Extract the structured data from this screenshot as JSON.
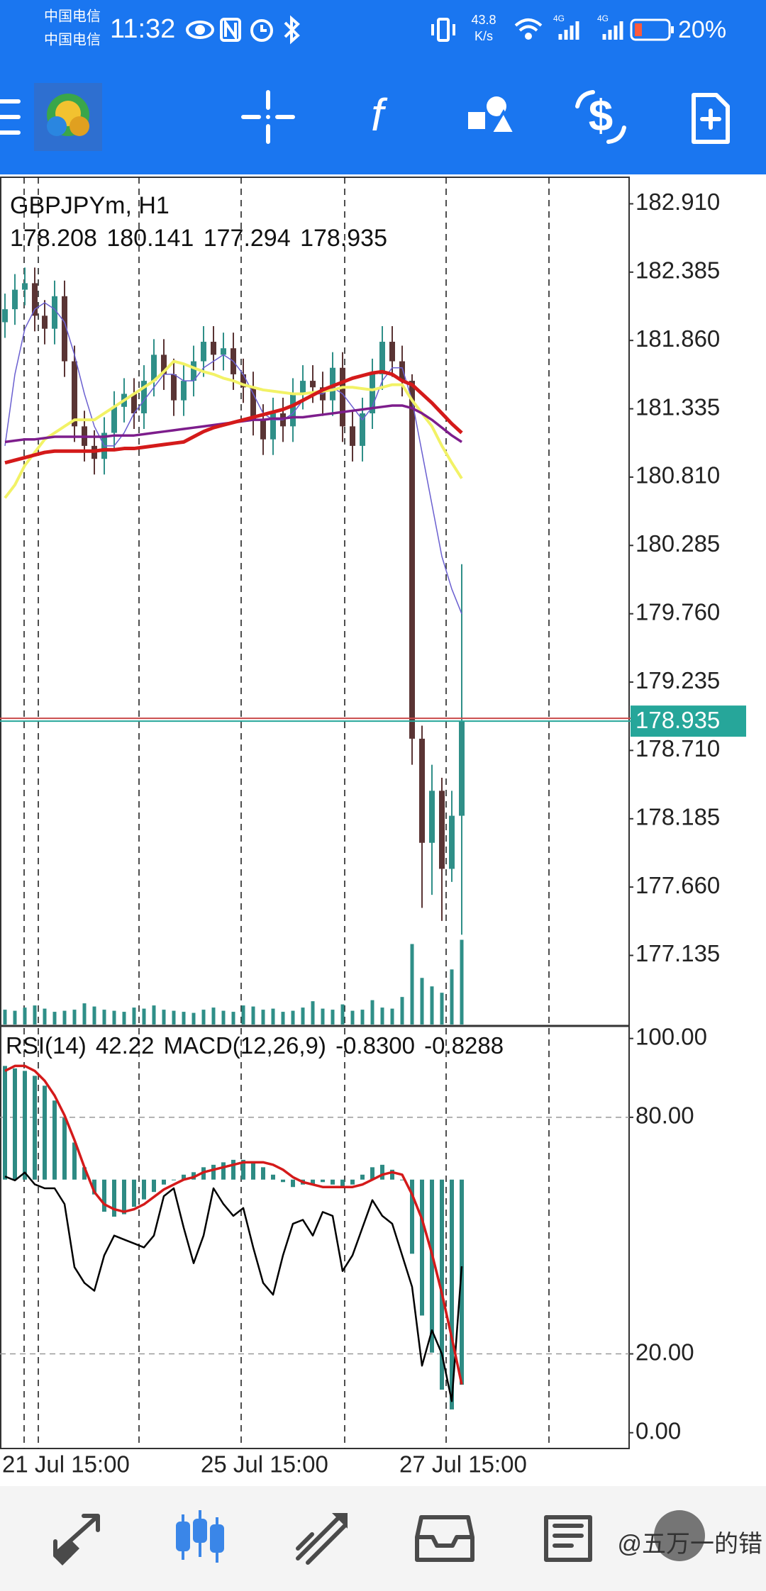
{
  "status_bar": {
    "carrier_1": "中国电信",
    "carrier_2": "中国电信",
    "time": "11:32",
    "net_speed": "43.8",
    "net_unit": "K/s",
    "signal_1": "4G",
    "signal_2": "4G",
    "battery": "20%"
  },
  "toolbar": {
    "indicator_icon": "f"
  },
  "chart_data": [
    {
      "type": "candlestick",
      "title": "GBPJPYm, H1",
      "categories": [
        "21 Jul 15:00",
        null,
        null,
        null,
        null,
        null,
        null,
        null,
        null,
        null,
        null,
        null,
        null,
        null,
        null,
        null,
        null,
        null,
        null,
        null,
        "25 Jul 15:00",
        null,
        null,
        null,
        null,
        null,
        null,
        null,
        null,
        null,
        null,
        null,
        null,
        null,
        null,
        null,
        null,
        null,
        null,
        null,
        "27 Jul 15:00",
        null,
        null,
        null,
        null,
        null,
        null
      ],
      "open": [
        182.0,
        182.1,
        182.25,
        182.3,
        182.05,
        181.95,
        182.2,
        181.7,
        181.2,
        181.05,
        180.95,
        181.15,
        181.35,
        181.45,
        181.3,
        181.55,
        181.75,
        181.6,
        181.4,
        181.55,
        181.7,
        181.85,
        181.75,
        181.8,
        181.6,
        181.5,
        181.25,
        181.1,
        181.3,
        181.2,
        181.45,
        181.55,
        181.5,
        181.4,
        181.65,
        181.2,
        181.05,
        181.3,
        181.6,
        181.85,
        181.7,
        181.55,
        178.8,
        178.0,
        178.4,
        177.8,
        178.208
      ],
      "high": [
        182.22,
        182.37,
        182.42,
        182.42,
        182.17,
        182.32,
        182.32,
        181.82,
        181.32,
        181.17,
        181.27,
        181.47,
        181.57,
        181.57,
        181.67,
        181.87,
        181.87,
        181.72,
        181.67,
        181.82,
        181.97,
        181.97,
        181.92,
        181.92,
        181.72,
        181.62,
        181.37,
        181.42,
        181.42,
        181.57,
        181.67,
        181.67,
        181.62,
        181.77,
        181.77,
        181.32,
        181.42,
        181.72,
        181.97,
        181.97,
        181.82,
        181.6,
        178.9,
        178.6,
        178.5,
        178.4,
        180.141
      ],
      "low": [
        181.88,
        181.98,
        182.13,
        181.93,
        181.83,
        181.83,
        181.58,
        181.08,
        180.93,
        180.83,
        180.83,
        181.03,
        181.23,
        181.18,
        181.18,
        181.43,
        181.48,
        181.28,
        181.28,
        181.43,
        181.58,
        181.63,
        181.63,
        181.48,
        181.38,
        181.13,
        180.98,
        180.98,
        181.08,
        181.08,
        181.33,
        181.38,
        181.28,
        181.28,
        181.08,
        180.93,
        180.93,
        181.18,
        181.48,
        181.58,
        181.43,
        178.6,
        177.5,
        177.6,
        177.4,
        177.7,
        177.294
      ],
      "close": [
        182.1,
        182.25,
        182.3,
        182.05,
        181.95,
        182.2,
        181.7,
        181.2,
        181.05,
        180.95,
        181.15,
        181.35,
        181.45,
        181.3,
        181.55,
        181.75,
        181.6,
        181.4,
        181.55,
        181.7,
        181.85,
        181.75,
        181.8,
        181.6,
        181.5,
        181.25,
        181.1,
        181.3,
        181.2,
        181.45,
        181.55,
        181.5,
        181.4,
        181.65,
        181.2,
        181.05,
        181.3,
        181.6,
        181.85,
        181.7,
        181.55,
        178.8,
        178.0,
        178.4,
        177.8,
        178.208,
        178.935
      ],
      "colors": {
        "up": "#2f8f88",
        "down": "#5a3434"
      },
      "overlays": [
        {
          "color": "#6a5fd0",
          "width": 1.5,
          "values": [
            181.05,
            181.6,
            181.95,
            182.1,
            182.15,
            182.1,
            182.0,
            181.75,
            181.45,
            181.2,
            181.05,
            181.05,
            181.15,
            181.3,
            181.4,
            181.5,
            181.6,
            181.6,
            181.55,
            181.55,
            181.65,
            181.7,
            181.75,
            181.7,
            181.6,
            181.45,
            181.3,
            181.25,
            181.25,
            181.3,
            181.4,
            181.45,
            181.45,
            181.5,
            181.45,
            181.35,
            181.25,
            181.35,
            181.55,
            181.65,
            181.65,
            181.4,
            181.0,
            180.6,
            180.2,
            179.95,
            179.76
          ]
        },
        {
          "color": "#f2f266",
          "width": 4,
          "values": [
            180.65,
            180.75,
            180.9,
            181.0,
            181.1,
            181.15,
            181.2,
            181.25,
            181.25,
            181.25,
            181.3,
            181.35,
            181.4,
            181.45,
            181.5,
            181.55,
            181.62,
            181.7,
            181.68,
            181.65,
            181.62,
            181.6,
            181.57,
            181.55,
            181.52,
            181.5,
            181.48,
            181.47,
            181.46,
            181.45,
            181.45,
            181.46,
            181.47,
            181.48,
            181.5,
            181.5,
            181.49,
            181.48,
            181.5,
            181.52,
            181.52,
            181.4,
            181.3,
            181.2,
            181.05,
            180.92,
            180.8
          ]
        },
        {
          "color": "#7d1d8c",
          "width": 3.5,
          "values": [
            181.08,
            181.09,
            181.1,
            181.1,
            181.11,
            181.12,
            181.12,
            181.12,
            181.12,
            181.12,
            181.12,
            181.13,
            181.13,
            181.13,
            181.14,
            181.15,
            181.16,
            181.17,
            181.18,
            181.19,
            181.2,
            181.21,
            181.22,
            181.23,
            181.24,
            181.25,
            181.25,
            181.26,
            181.26,
            181.27,
            181.27,
            181.28,
            181.29,
            181.3,
            181.31,
            181.32,
            181.33,
            181.34,
            181.35,
            181.36,
            181.36,
            181.34,
            181.3,
            181.25,
            181.19,
            181.13,
            181.08
          ]
        },
        {
          "color": "#d41a1a",
          "width": 5,
          "values": [
            180.92,
            180.94,
            180.96,
            180.98,
            181.0,
            181.01,
            181.01,
            181.01,
            181.01,
            181.01,
            181.02,
            181.02,
            181.03,
            181.03,
            181.04,
            181.05,
            181.06,
            181.07,
            181.08,
            181.12,
            181.16,
            181.19,
            181.21,
            181.23,
            181.25,
            181.27,
            181.29,
            181.31,
            181.33,
            181.36,
            181.4,
            181.44,
            181.48,
            181.51,
            181.54,
            181.57,
            181.59,
            181.61,
            181.62,
            181.6,
            181.55,
            181.52,
            181.45,
            181.38,
            181.3,
            181.22,
            181.15
          ]
        }
      ],
      "volume": {
        "color": "#2f8f88",
        "values": [
          700,
          650,
          800,
          900,
          750,
          600,
          650,
          700,
          1000,
          850,
          700,
          650,
          600,
          800,
          750,
          900,
          700,
          650,
          600,
          550,
          700,
          800,
          650,
          600,
          900,
          850,
          700,
          750,
          600,
          650,
          800,
          1100,
          750,
          700,
          950,
          650,
          700,
          1150,
          800,
          750,
          1300,
          3800,
          2200,
          1800,
          1500,
          2600,
          4000
        ]
      },
      "volume_lim": [
        0,
        40000
      ],
      "price_line_color": "#26a69a",
      "ylim": [
        176.604,
        183.114
      ],
      "yticks": [
        {
          "value": 182.91,
          "label": "182.910"
        },
        182.385,
        {
          "value": 181.86,
          "label": "181.860"
        },
        181.335,
        {
          "value": 180.81,
          "label": "180.810"
        },
        180.285,
        {
          "value": 179.76,
          "label": "179.760"
        },
        179.235,
        {
          "value": 178.71,
          "label": "178.710"
        },
        178.185,
        {
          "value": 177.66,
          "label": "177.660"
        },
        177.135
      ],
      "grid": false
    },
    {
      "type": "rsi_macd",
      "series": [
        {
          "name": "RSI(14)",
          "color": "#000000",
          "values": [
            65,
            64,
            66,
            63,
            62,
            62,
            58,
            42,
            38,
            36,
            45,
            50,
            49,
            48,
            47,
            50,
            60,
            62,
            52,
            43,
            50,
            62,
            58,
            55,
            57,
            47,
            38,
            35,
            45,
            53,
            54,
            50,
            56,
            55,
            41,
            45,
            52,
            59,
            55,
            53,
            45,
            37,
            17,
            26,
            20,
            8,
            42.22
          ]
        },
        {
          "name": "MACD(12,26,9)",
          "color": "#2e8b84",
          "axis": "y2",
          "values": [
            0.46,
            0.45,
            0.44,
            0.42,
            0.38,
            0.32,
            0.25,
            0.15,
            0.05,
            -0.06,
            -0.13,
            -0.15,
            -0.14,
            -0.11,
            -0.08,
            -0.05,
            -0.02,
            0.0,
            0.02,
            0.03,
            0.05,
            0.06,
            0.07,
            0.08,
            0.08,
            0.07,
            0.05,
            0.02,
            -0.01,
            -0.03,
            -0.02,
            -0.02,
            -0.01,
            -0.02,
            -0.03,
            -0.02,
            0.02,
            0.05,
            0.06,
            0.04,
            0.0,
            -0.3,
            -0.55,
            -0.7,
            -0.85,
            -0.93,
            -0.83
          ],
          "value_labels": [
            null,
            null,
            null,
            null,
            null,
            null,
            null,
            null,
            null,
            null,
            null,
            null,
            null,
            null,
            null,
            null,
            null,
            null,
            null,
            null,
            null,
            null,
            null,
            null,
            null,
            null,
            null,
            null,
            null,
            null,
            null,
            null,
            null,
            null,
            null,
            null,
            null,
            null,
            null,
            null,
            null,
            null,
            null,
            null,
            null,
            null,
            "-0.8300"
          ]
        },
        {
          "color": "#d41a1a",
          "axis": "y2",
          "values": [
            0.44,
            0.46,
            0.46,
            0.44,
            0.4,
            0.34,
            0.26,
            0.16,
            0.05,
            -0.05,
            -0.1,
            -0.12,
            -0.13,
            -0.12,
            -0.1,
            -0.07,
            -0.04,
            -0.02,
            0.0,
            0.01,
            0.03,
            0.04,
            0.05,
            0.06,
            0.07,
            0.07,
            0.07,
            0.06,
            0.04,
            0.01,
            -0.01,
            -0.02,
            -0.03,
            -0.03,
            -0.03,
            -0.03,
            -0.02,
            0.0,
            0.02,
            0.03,
            0.02,
            -0.06,
            -0.16,
            -0.3,
            -0.46,
            -0.64,
            -0.8288
          ]
        }
      ],
      "ylim": [
        -4,
        103
      ],
      "yticks": [
        {
          "value": 100,
          "label": "100.00"
        },
        {
          "value": 80,
          "label": "80.00"
        },
        {
          "value": 20,
          "label": "20.00"
        },
        {
          "value": 0,
          "label": "0.00"
        }
      ],
      "y2lim": [
        -1.088,
        0.619
      ],
      "grid": true
    }
  ],
  "watermark": "@五万一的错"
}
